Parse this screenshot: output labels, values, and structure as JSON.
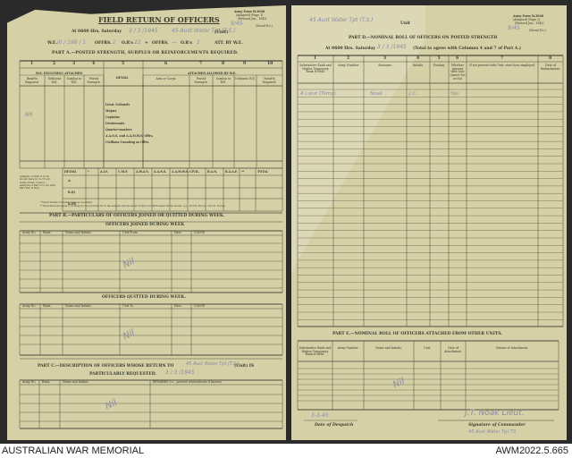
{
  "left_page": {
    "form_no": "Army Form W.3008",
    "form_sub": "(Adapted) (Page 1)",
    "form_rev": "(Revised Jan., 1943)",
    "serial_hw": "9/45",
    "serial_label": "(Serial No.)",
    "title": "FIELD RETURN OF OFFICERS",
    "at_line": "At 0600 Hrs. Saturday",
    "date_hw": "3 / 3 /1945",
    "unit_hw": "45 Aust Water Tpt (T.S.)",
    "unit_label": "(Unit)",
    "we_line": "W.E.",
    "we_hw": "III / 198 / 1",
    "offrs_label": "OFFRS.",
    "offrs_hw": "1",
    "ors_label": "O.R's",
    "ors_hw": "22",
    "plus": "+",
    "offrs2_hw": "—",
    "ors2_hw": "1",
    "att_label": "ATT. BY W.E.",
    "part_a": "PART A.—POSTED STRENGTH, SURPLUS OR REINFORCEMENTS REQUIRED.",
    "col_numbers": [
      "1",
      "2",
      "3",
      "4",
      "5",
      "6",
      "7",
      "8",
      "9",
      "10"
    ],
    "group_we": "W.E. EXCLUDING ATTACHED",
    "group_detail": "DETAIL",
    "group_attached": "ATTACHED ALLOWED BY W.E.",
    "sub_headers": [
      "Reinf'ts Required.",
      "Deficient W.E.",
      "Surplus to W.E.",
      "Posted Strength.",
      "Arm or Corps.",
      "Posted Strength.",
      "Surplus to W.E.",
      "Deficient W.E.",
      "Reinf'ts Required."
    ],
    "detail_items": [
      "Lieut.-Colonels",
      "Majors",
      "Captains",
      "Lieutenants",
      "Quarter-masters",
      "A.A.N.S. and A.A.M.W.S. Offrs.",
      "Civilians Counting as Offrs."
    ],
    "hw_nr": "NR",
    "hw_vals": [
      "1",
      "—",
      "—",
      "1",
      "1",
      "1"
    ],
    "summary_headers": [
      "DETAIL",
      "*",
      "A.I.F.",
      "C.M.F.",
      "A.W.A.S.",
      "A.A.N.S.",
      "A.A.M.W.S.",
      "CIVIL.",
      "R.A.N.",
      "R.A.A.F.",
      "**",
      "TOTAL"
    ],
    "summary_rows": [
      "A.",
      "B.(i)",
      "B.(ii)"
    ],
    "summary_note": "Analysis of Part A to be shown here by A.I.F. etc. Units under control... analysis of Part A to tie with Part B(i) & B(ii).",
    "footnote1": "* Insert details of higher ranks as necessary.",
    "footnote2": "** Personnel belonging to a category not provided for in the analysis will be shown in this Col. Particulars will be shown, e.g., 20 N.Z. Forces, 10 N.Z. Forces.",
    "part_b": "PART B.—PARTICULARS OF OFFICERS JOINED OR QUITTED DURING WEEK.",
    "joined_title": "OFFICERS JOINED DURING WEEK",
    "joined_headers": [
      "Army No.",
      "Rank.",
      "Name and Initials.",
      "Unit From.",
      "Date.",
      "CAUSE."
    ],
    "quitted_title": "OFFICERS QUITTED DURING WEEK.",
    "quitted_headers": [
      "Army No.",
      "Rank.",
      "Name and Initials.",
      "Unit To.",
      "Date.",
      "CAUSE."
    ],
    "nil": "Nil",
    "part_c": "PART C.—DESCRIPTION OF OFFICERS WHOSE RETURN TO",
    "part_c_unit_hw": "45 Aust Water Tpt (T.S.)",
    "part_c_unit": "(Unit) IS",
    "part_c2": "PARTICULARLY REQUESTED.",
    "part_c_date_hw": "3 / 3 /1945",
    "c_headers": [
      "Army No.",
      "Rank.",
      "Name and Initials.",
      "REMARKS (i.e., present whereabouts if known)."
    ]
  },
  "right_page": {
    "unit_hw": "45 Aust Water Tpt (T.S.)",
    "unit_label": "Unit",
    "form_no": "Army Form W.3008",
    "form_sub": "(Adapted) (Page 2)",
    "form_rev": "(Revised Jan., 1943)",
    "serial_hw": "9/45",
    "serial_label": "(Serial No.)",
    "part_d": "PART D.—NOMINAL ROLL OF OFFICERS ON POSTED STRENGTH",
    "at_line": "At 0600 Hrs. Saturday",
    "date_hw": "3 / 3 /1945",
    "total_note": "(Total to agree with Columns 4 and 7 of Part A.)",
    "col_numbers": [
      "1",
      "2",
      "3",
      "4",
      "5",
      "6",
      "7",
      "8"
    ],
    "headers": [
      "Substantive Rank and Higher Temporary Rank if Held.",
      "Army Number.",
      "Surname.",
      "Initials.",
      "Posting.",
      "Whether present with Unit (insert Yes or No)",
      "If not present with Unit, state how employed.",
      "Date of Embarkment."
    ],
    "row1_hw": [
      "A Lieut (Temp)",
      "Noak",
      "J.C.",
      "",
      "Yes"
    ],
    "part_e": "PART E.—NOMINAL ROLL OF OFFICERS ATTACHED FROM OTHER UNITS.",
    "e_headers": [
      "Substantive Rank and Higher Temporary Rank if Held.",
      "Army Number.",
      "Name and Initials.",
      "Unit.",
      "Date of Attachment.",
      "Nature of Attachment."
    ],
    "nil": "Nil",
    "despatch_hw": "3-3-45",
    "despatch_label": "Date of Despatch",
    "signature_hw": "J.T. Noak Lieut.",
    "signature_label": "Signature of Commander",
    "signature_unit_hw": "45 Aust Water Tpt TS"
  },
  "footer": {
    "left": "AUSTRALIAN WAR MEMORIAL",
    "right": "AWM2022.5.665"
  }
}
